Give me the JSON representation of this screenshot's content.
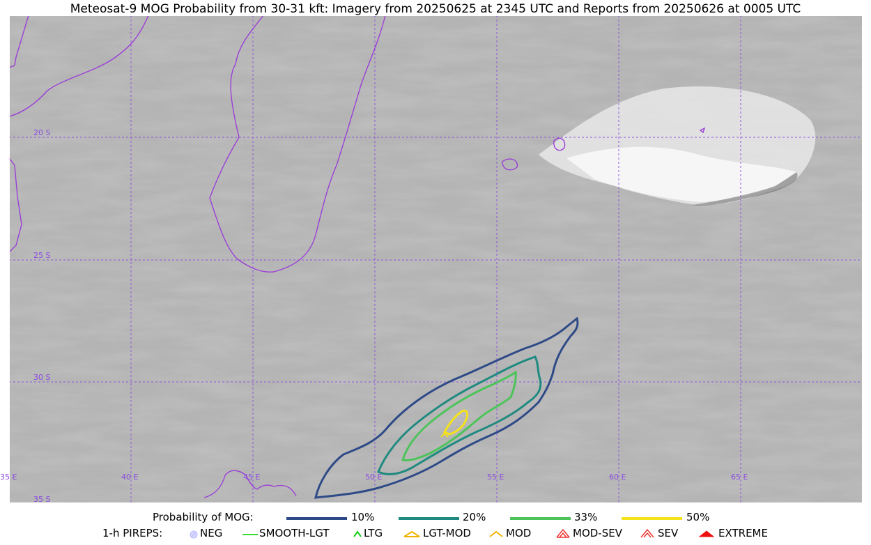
{
  "title": "Meteosat-9 MOG Probability from 30-31 kft: Imagery from 20250625 at 2345 UTC and Reports from 20250626 at 0005 UTC",
  "map": {
    "lat_labels": [
      "20 S",
      "25 S",
      "30 S",
      "35 S"
    ],
    "lon_labels": [
      "35 E",
      "40 E",
      "45 E",
      "50 E",
      "55 E",
      "60 E",
      "65 E"
    ],
    "gridline_color": "#8a4be0",
    "coastline_color": "#9b3fd6"
  },
  "legend": {
    "probability_label": "Probability of MOG:",
    "probability_levels": [
      {
        "label": "10%",
        "color": "#2e4a87"
      },
      {
        "label": "20%",
        "color": "#1f8a80"
      },
      {
        "label": "33%",
        "color": "#4cc45a"
      },
      {
        "label": "50%",
        "color": "#f4e21a"
      }
    ],
    "pireps_label": "1-h PIREPS:",
    "pireps": [
      {
        "label": "NEG",
        "icon": "neg-icon",
        "color": "#b9b9ff"
      },
      {
        "label": "SMOOTH-LGT",
        "icon": "smooth-lgt-line-icon",
        "color": "#33dd33"
      },
      {
        "label": "LTG",
        "icon": "ltg-chevron-icon",
        "color": "#18cc18"
      },
      {
        "label": "LGT-MOD",
        "icon": "lgt-mod-chevron-icon",
        "color": "#f0b400"
      },
      {
        "label": "MOD",
        "icon": "mod-chevron-icon",
        "color": "#f0b400"
      },
      {
        "label": "MOD-SEV",
        "icon": "mod-sev-chevron-icon",
        "color": "#ee3333"
      },
      {
        "label": "SEV",
        "icon": "sev-chevron-icon",
        "color": "#ee3333"
      },
      {
        "label": "EXTREME",
        "icon": "extreme-chevron-icon",
        "color": "#ee1111"
      }
    ]
  }
}
